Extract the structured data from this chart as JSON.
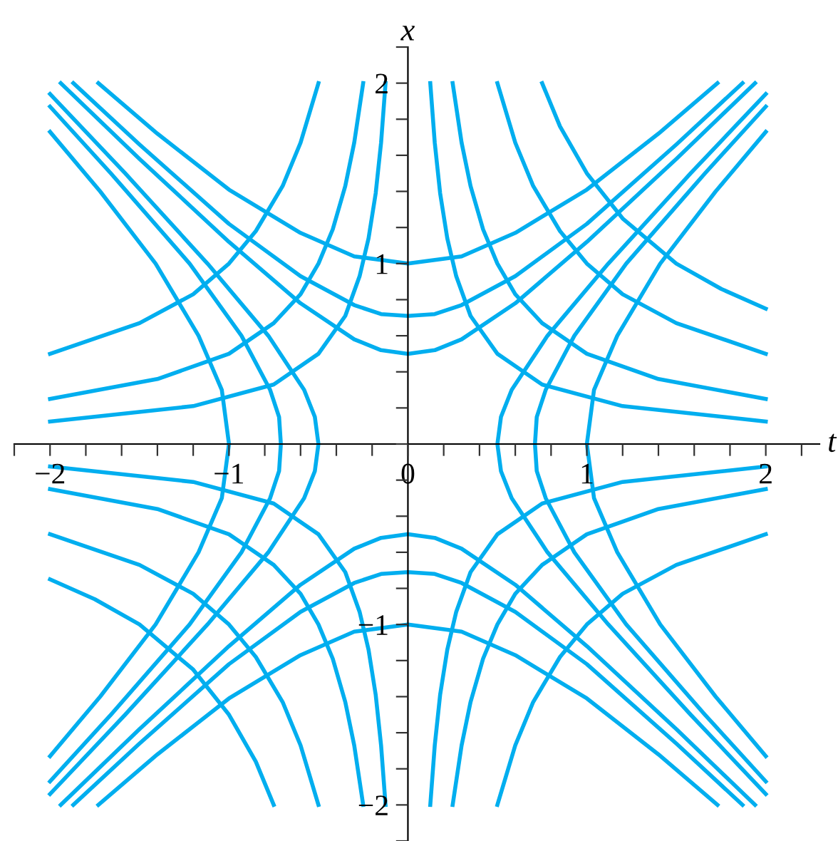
{
  "chart_data": {
    "type": "line",
    "xlabel": "t",
    "ylabel": "x",
    "xlim": [
      -2.2,
      2.3
    ],
    "ylim": [
      -2.2,
      2.2
    ],
    "xticks": [
      {
        "value": -2.2,
        "label": null
      },
      {
        "value": -2,
        "label": "−2"
      },
      {
        "value": -1.8,
        "label": null
      },
      {
        "value": -1.6,
        "label": null
      },
      {
        "value": -1.4,
        "label": null
      },
      {
        "value": -1.2,
        "label": null
      },
      {
        "value": -1,
        "label": "−1"
      },
      {
        "value": -0.8,
        "label": null
      },
      {
        "value": -0.6,
        "label": null
      },
      {
        "value": -0.4,
        "label": null
      },
      {
        "value": -0.2,
        "label": null
      },
      {
        "value": 0,
        "label": "0"
      },
      {
        "value": 0.2,
        "label": null
      },
      {
        "value": 0.4,
        "label": null
      },
      {
        "value": 0.6,
        "label": null
      },
      {
        "value": 0.8,
        "label": null
      },
      {
        "value": 1,
        "label": "1"
      },
      {
        "value": 1.2,
        "label": null
      },
      {
        "value": 1.4,
        "label": null
      },
      {
        "value": 1.6,
        "label": null
      },
      {
        "value": 1.8,
        "label": null
      },
      {
        "value": 2,
        "label": "2"
      },
      {
        "value": 2.2,
        "label": null
      }
    ],
    "yticks": [
      {
        "value": -2.2,
        "label": null
      },
      {
        "value": -2,
        "label": "−2"
      },
      {
        "value": -1.8,
        "label": null
      },
      {
        "value": -1.6,
        "label": null
      },
      {
        "value": -1.4,
        "label": null
      },
      {
        "value": -1.2,
        "label": null
      },
      {
        "value": -1,
        "label": "−1"
      },
      {
        "value": -0.8,
        "label": null
      },
      {
        "value": -0.6,
        "label": null
      },
      {
        "value": -0.4,
        "label": null
      },
      {
        "value": -0.2,
        "label": null
      },
      {
        "value": 0,
        "label": null
      },
      {
        "value": 0.2,
        "label": null
      },
      {
        "value": 0.4,
        "label": null
      },
      {
        "value": 0.6,
        "label": null
      },
      {
        "value": 0.8,
        "label": null
      },
      {
        "value": 1,
        "label": "1"
      },
      {
        "value": 1.2,
        "label": null
      },
      {
        "value": 1.4,
        "label": null
      },
      {
        "value": 1.6,
        "label": null
      },
      {
        "value": 1.8,
        "label": null
      },
      {
        "value": 2,
        "label": "2"
      },
      {
        "value": 2.2,
        "label": null
      }
    ],
    "grid": false,
    "legend": false,
    "marker": "none",
    "line_style": "solid",
    "series": [
      {
        "color": "#00aeef",
        "x": [
          -1.73,
          -1.4,
          -1,
          -0.6,
          -0.3,
          0,
          0.3,
          0.6,
          1,
          1.4,
          1.73
        ],
        "values": [
          2,
          1.72,
          1.41,
          1.17,
          1.04,
          1,
          1.04,
          1.17,
          1.41,
          1.72,
          2
        ]
      },
      {
        "color": "#00aeef",
        "x": [
          -1.87,
          -1.5,
          -1,
          -0.6,
          -0.3,
          -0.15,
          0,
          0.15,
          0.3,
          0.6,
          1,
          1.5,
          1.87
        ],
        "values": [
          2,
          1.66,
          1.22,
          0.93,
          0.77,
          0.72,
          0.71,
          0.72,
          0.77,
          0.93,
          1.22,
          1.66,
          2
        ]
      },
      {
        "color": "#00aeef",
        "x": [
          -1.94,
          -1.5,
          -1,
          -0.6,
          -0.3,
          -0.15,
          0,
          0.15,
          0.3,
          0.6,
          1,
          1.5,
          1.94
        ],
        "values": [
          2,
          1.58,
          1.12,
          0.78,
          0.58,
          0.52,
          0.5,
          0.52,
          0.58,
          0.78,
          1.12,
          1.58,
          2
        ]
      },
      {
        "color": "#00aeef",
        "x": [
          -1.73,
          -1.4,
          -1,
          -0.6,
          -0.3,
          0,
          0.3,
          0.6,
          1,
          1.4,
          1.73
        ],
        "values": [
          -2,
          -1.72,
          -1.41,
          -1.17,
          -1.04,
          -1,
          -1.04,
          -1.17,
          -1.41,
          -1.72,
          -2
        ]
      },
      {
        "color": "#00aeef",
        "x": [
          -1.87,
          -1.5,
          -1,
          -0.6,
          -0.3,
          -0.15,
          0,
          0.15,
          0.3,
          0.6,
          1,
          1.5,
          1.87
        ],
        "values": [
          -2,
          -1.66,
          -1.22,
          -0.93,
          -0.77,
          -0.72,
          -0.71,
          -0.72,
          -0.77,
          -0.93,
          -1.22,
          -1.66,
          -2
        ]
      },
      {
        "color": "#00aeef",
        "x": [
          -1.94,
          -1.5,
          -1,
          -0.6,
          -0.3,
          -0.15,
          0,
          0.15,
          0.3,
          0.6,
          1,
          1.5,
          1.94
        ],
        "values": [
          -2,
          -1.58,
          -1.12,
          -0.78,
          -0.58,
          -0.52,
          -0.5,
          -0.52,
          -0.58,
          -0.78,
          -1.12,
          -1.58,
          -2
        ]
      },
      {
        "color": "#00aeef",
        "values": [
          -1.73,
          -1.4,
          -1,
          -0.6,
          -0.3,
          0,
          0.3,
          0.6,
          1,
          1.4,
          1.73
        ],
        "x": [
          2,
          1.72,
          1.41,
          1.17,
          1.04,
          1,
          1.04,
          1.17,
          1.41,
          1.72,
          2
        ]
      },
      {
        "color": "#00aeef",
        "values": [
          -1.87,
          -1.5,
          -1,
          -0.6,
          -0.3,
          -0.15,
          0,
          0.15,
          0.3,
          0.6,
          1,
          1.5,
          1.87
        ],
        "x": [
          2,
          1.66,
          1.22,
          0.93,
          0.77,
          0.72,
          0.71,
          0.72,
          0.77,
          0.93,
          1.22,
          1.66,
          2
        ]
      },
      {
        "color": "#00aeef",
        "values": [
          -1.94,
          -1.5,
          -1,
          -0.6,
          -0.3,
          -0.15,
          0,
          0.15,
          0.3,
          0.6,
          1,
          1.5,
          1.94
        ],
        "x": [
          2,
          1.58,
          1.12,
          0.78,
          0.58,
          0.52,
          0.5,
          0.52,
          0.58,
          0.78,
          1.12,
          1.58,
          2
        ]
      },
      {
        "color": "#00aeef",
        "values": [
          -1.73,
          -1.4,
          -1,
          -0.6,
          -0.3,
          0,
          0.3,
          0.6,
          1,
          1.4,
          1.73
        ],
        "x": [
          -2,
          -1.72,
          -1.41,
          -1.17,
          -1.04,
          -1,
          -1.04,
          -1.17,
          -1.41,
          -1.72,
          -2
        ]
      },
      {
        "color": "#00aeef",
        "values": [
          -1.87,
          -1.5,
          -1,
          -0.6,
          -0.3,
          -0.15,
          0,
          0.15,
          0.3,
          0.6,
          1,
          1.5,
          1.87
        ],
        "x": [
          -2,
          -1.66,
          -1.22,
          -0.93,
          -0.77,
          -0.72,
          -0.71,
          -0.72,
          -0.77,
          -0.93,
          -1.22,
          -1.66,
          -2
        ]
      },
      {
        "color": "#00aeef",
        "values": [
          -1.94,
          -1.5,
          -1,
          -0.6,
          -0.3,
          -0.15,
          0,
          0.15,
          0.3,
          0.6,
          1,
          1.5,
          1.94
        ],
        "x": [
          -2,
          -1.58,
          -1.12,
          -0.78,
          -0.58,
          -0.52,
          -0.5,
          -0.52,
          -0.58,
          -0.78,
          -1.12,
          -1.58,
          -2
        ]
      },
      {
        "color": "#00aeef",
        "x": [
          0.75,
          0.85,
          1,
          1.2,
          1.5,
          1.75,
          2
        ],
        "values": [
          2,
          1.76,
          1.5,
          1.25,
          1,
          0.86,
          0.75
        ]
      },
      {
        "color": "#00aeef",
        "x": [
          0.5,
          0.6,
          0.7,
          0.85,
          1,
          1.2,
          1.5,
          2
        ],
        "values": [
          2,
          1.67,
          1.43,
          1.18,
          1,
          0.83,
          0.67,
          0.5
        ]
      },
      {
        "color": "#00aeef",
        "x": [
          0.25,
          0.3,
          0.35,
          0.42,
          0.5,
          0.6,
          0.75,
          1,
          1.4,
          2
        ],
        "values": [
          2,
          1.67,
          1.43,
          1.19,
          1,
          0.83,
          0.67,
          0.5,
          0.36,
          0.25
        ]
      },
      {
        "color": "#00aeef",
        "x": [
          0.125,
          0.15,
          0.18,
          0.22,
          0.27,
          0.35,
          0.5,
          0.75,
          1.2,
          2
        ],
        "values": [
          2,
          1.67,
          1.39,
          1.14,
          0.93,
          0.71,
          0.5,
          0.33,
          0.21,
          0.125
        ]
      },
      {
        "color": "#00aeef",
        "x": [
          -0.75,
          -0.85,
          -1,
          -1.2,
          -1.5,
          -1.75,
          -2
        ],
        "values": [
          -2,
          -1.76,
          -1.5,
          -1.25,
          -1,
          -0.86,
          -0.75
        ]
      },
      {
        "color": "#00aeef",
        "x": [
          -0.5,
          -0.6,
          -0.7,
          -0.85,
          -1,
          -1.2,
          -1.5,
          -2
        ],
        "values": [
          -2,
          -1.67,
          -1.43,
          -1.18,
          -1,
          -0.83,
          -0.67,
          -0.5
        ]
      },
      {
        "color": "#00aeef",
        "x": [
          -0.25,
          -0.3,
          -0.35,
          -0.42,
          -0.5,
          -0.6,
          -0.75,
          -1,
          -1.4,
          -2
        ],
        "values": [
          -2,
          -1.67,
          -1.43,
          -1.19,
          -1,
          -0.83,
          -0.67,
          -0.5,
          -0.36,
          -0.25
        ]
      },
      {
        "color": "#00aeef",
        "x": [
          -0.125,
          -0.15,
          -0.18,
          -0.22,
          -0.27,
          -0.35,
          -0.5,
          -0.75,
          -1.2,
          -2
        ],
        "values": [
          -2,
          -1.67,
          -1.39,
          -1.14,
          -0.93,
          -0.71,
          -0.5,
          -0.33,
          -0.21,
          -0.125
        ]
      },
      {
        "color": "#00aeef",
        "x": [
          -0.5,
          -0.6,
          -0.7,
          -0.85,
          -1,
          -1.2,
          -1.5,
          -2
        ],
        "values": [
          2,
          1.67,
          1.43,
          1.18,
          1,
          0.83,
          0.67,
          0.5
        ]
      },
      {
        "color": "#00aeef",
        "x": [
          -0.25,
          -0.3,
          -0.35,
          -0.42,
          -0.5,
          -0.6,
          -0.75,
          -1,
          -1.4,
          -2
        ],
        "values": [
          2,
          1.67,
          1.43,
          1.19,
          1,
          0.83,
          0.67,
          0.5,
          0.36,
          0.25
        ]
      },
      {
        "color": "#00aeef",
        "x": [
          -0.125,
          -0.15,
          -0.18,
          -0.22,
          -0.27,
          -0.35,
          -0.5,
          -0.75,
          -1.2,
          -2
        ],
        "values": [
          2,
          1.67,
          1.39,
          1.14,
          0.93,
          0.71,
          0.5,
          0.33,
          0.21,
          0.125
        ]
      },
      {
        "color": "#00aeef",
        "x": [
          0.5,
          0.6,
          0.7,
          0.85,
          1,
          1.2,
          1.5,
          2
        ],
        "values": [
          -2,
          -1.67,
          -1.43,
          -1.18,
          -1,
          -0.83,
          -0.67,
          -0.5
        ]
      },
      {
        "color": "#00aeef",
        "x": [
          0.25,
          0.3,
          0.35,
          0.42,
          0.5,
          0.6,
          0.75,
          1,
          1.4,
          2
        ],
        "values": [
          -2,
          -1.67,
          -1.43,
          -1.19,
          -1,
          -0.83,
          -0.67,
          -0.5,
          -0.36,
          -0.25
        ]
      },
      {
        "color": "#00aeef",
        "x": [
          0.125,
          0.15,
          0.18,
          0.22,
          0.27,
          0.35,
          0.5,
          0.75,
          1.2,
          2
        ],
        "values": [
          -2,
          -1.67,
          -1.39,
          -1.14,
          -0.93,
          -0.71,
          -0.5,
          -0.33,
          -0.21,
          -0.125
        ]
      }
    ]
  }
}
